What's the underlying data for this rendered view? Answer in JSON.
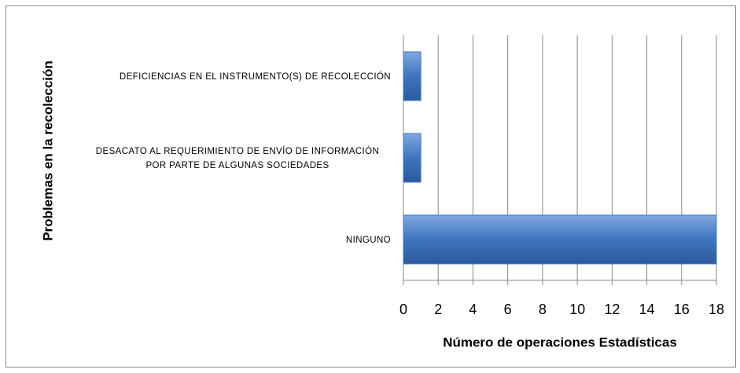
{
  "chart_data": {
    "type": "bar",
    "orientation": "horizontal",
    "categories": [
      "DEFICIENCIAS EN EL INSTRUMENTO(S) DE RECOLECCIÓN",
      "DESACATO AL REQUERIMIENTO DE ENVÍO DE INFORMACIÓN POR PARTE DE ALGUNAS SOCIEDADES",
      "NINGUNO"
    ],
    "values": [
      1,
      1,
      18
    ],
    "color": "#3f75bf",
    "xlim": [
      0,
      18
    ],
    "xticks": [
      0,
      2,
      4,
      6,
      8,
      10,
      12,
      14,
      16,
      18
    ],
    "grid": true,
    "xlabel": "Número de operaciones Estadísticas",
    "ylabel": "Problemas en la recolección"
  }
}
